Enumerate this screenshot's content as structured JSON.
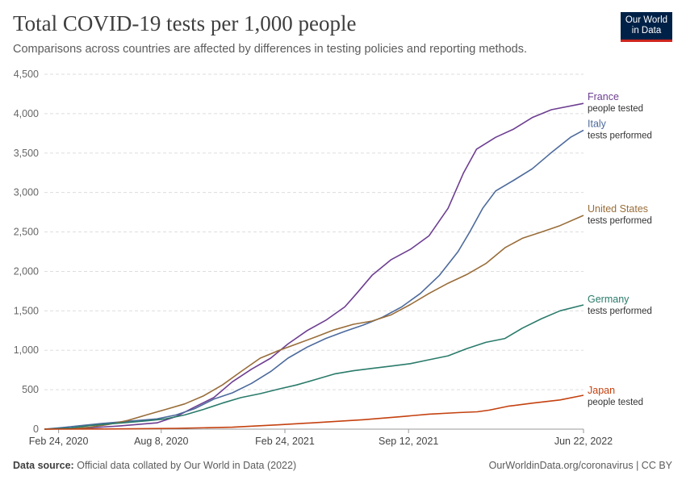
{
  "header": {
    "title": "Total COVID-19 tests per 1,000 people",
    "subtitle": "Comparisons across countries are affected by differences in testing policies and reporting methods."
  },
  "logo": {
    "line1": "Our World",
    "line2": "in Data"
  },
  "footer": {
    "source_label": "Data source:",
    "source_text": "Official data collated by Our World in Data (2022)",
    "right_text": "OurWorldinData.org/coronavirus | CC BY"
  },
  "chart_data": {
    "type": "line",
    "title": "Total COVID-19 tests per 1,000 people",
    "subtitle": "Comparisons across countries are affected by differences in testing policies and reporting methods.",
    "x_range": [
      "2020-02-01",
      "2022-06-22"
    ],
    "ylim": [
      0,
      4500
    ],
    "y_ticks": [
      0,
      500,
      1000,
      1500,
      2000,
      2500,
      3000,
      3500,
      4000,
      4500
    ],
    "y_tick_labels": [
      "0",
      "500",
      "1,000",
      "1,500",
      "2,000",
      "2,500",
      "3,000",
      "3,500",
      "4,000",
      "4,500"
    ],
    "x_ticks": [
      "2020-02-24",
      "2020-08-08",
      "2021-02-24",
      "2021-09-12",
      "2022-06-22"
    ],
    "x_tick_labels": [
      "Feb 24, 2020",
      "Aug 8, 2020",
      "Feb 24, 2021",
      "Sep 12, 2021",
      "Jun 22, 2022"
    ],
    "grid": "horizontal-dashed",
    "legend": "end-of-line labels",
    "series": [
      {
        "name": "France",
        "note": "people tested",
        "color": "#6d3e91",
        "points": [
          [
            "2020-02-01",
            0
          ],
          [
            "2020-04-01",
            10
          ],
          [
            "2020-06-01",
            40
          ],
          [
            "2020-08-01",
            80
          ],
          [
            "2020-09-01",
            160
          ],
          [
            "2020-10-01",
            280
          ],
          [
            "2020-11-01",
            400
          ],
          [
            "2020-12-01",
            600
          ],
          [
            "2021-01-01",
            760
          ],
          [
            "2021-02-01",
            900
          ],
          [
            "2021-03-01",
            1080
          ],
          [
            "2021-04-01",
            1250
          ],
          [
            "2021-05-01",
            1380
          ],
          [
            "2021-06-01",
            1550
          ],
          [
            "2021-06-20",
            1720
          ],
          [
            "2021-07-15",
            1950
          ],
          [
            "2021-08-15",
            2150
          ],
          [
            "2021-09-15",
            2280
          ],
          [
            "2021-10-15",
            2450
          ],
          [
            "2021-11-15",
            2800
          ],
          [
            "2021-12-10",
            3250
          ],
          [
            "2021-12-31",
            3550
          ],
          [
            "2022-01-31",
            3700
          ],
          [
            "2022-02-28",
            3800
          ],
          [
            "2022-03-31",
            3950
          ],
          [
            "2022-05-01",
            4050
          ],
          [
            "2022-06-22",
            4130
          ]
        ]
      },
      {
        "name": "Italy",
        "note": "tests performed",
        "color": "#4c6a9c",
        "points": [
          [
            "2020-02-01",
            0
          ],
          [
            "2020-03-01",
            20
          ],
          [
            "2020-04-01",
            45
          ],
          [
            "2020-05-01",
            70
          ],
          [
            "2020-06-01",
            90
          ],
          [
            "2020-08-01",
            130
          ],
          [
            "2020-09-01",
            180
          ],
          [
            "2020-10-01",
            260
          ],
          [
            "2020-11-01",
            380
          ],
          [
            "2020-12-01",
            460
          ],
          [
            "2021-01-01",
            580
          ],
          [
            "2021-02-01",
            730
          ],
          [
            "2021-03-01",
            900
          ],
          [
            "2021-04-01",
            1040
          ],
          [
            "2021-05-01",
            1150
          ],
          [
            "2021-06-01",
            1240
          ],
          [
            "2021-07-01",
            1320
          ],
          [
            "2021-08-01",
            1420
          ],
          [
            "2021-09-01",
            1550
          ],
          [
            "2021-10-01",
            1720
          ],
          [
            "2021-11-01",
            1950
          ],
          [
            "2021-12-01",
            2250
          ],
          [
            "2021-12-20",
            2500
          ],
          [
            "2022-01-10",
            2800
          ],
          [
            "2022-01-31",
            3020
          ],
          [
            "2022-02-28",
            3150
          ],
          [
            "2022-03-31",
            3300
          ],
          [
            "2022-04-30",
            3500
          ],
          [
            "2022-06-01",
            3700
          ],
          [
            "2022-06-22",
            3790
          ]
        ]
      },
      {
        "name": "United States",
        "note": "tests performed",
        "color": "#996d39",
        "points": [
          [
            "2020-02-01",
            0
          ],
          [
            "2020-03-15",
            5
          ],
          [
            "2020-04-15",
            25
          ],
          [
            "2020-05-15",
            60
          ],
          [
            "2020-06-15",
            110
          ],
          [
            "2020-07-15",
            180
          ],
          [
            "2020-08-15",
            250
          ],
          [
            "2020-09-15",
            320
          ],
          [
            "2020-10-15",
            420
          ],
          [
            "2020-11-15",
            560
          ],
          [
            "2020-12-15",
            730
          ],
          [
            "2021-01-15",
            900
          ],
          [
            "2021-02-15",
            1000
          ],
          [
            "2021-03-15",
            1080
          ],
          [
            "2021-04-15",
            1170
          ],
          [
            "2021-05-15",
            1260
          ],
          [
            "2021-06-15",
            1330
          ],
          [
            "2021-07-15",
            1370
          ],
          [
            "2021-08-15",
            1450
          ],
          [
            "2021-09-15",
            1580
          ],
          [
            "2021-10-15",
            1720
          ],
          [
            "2021-11-15",
            1850
          ],
          [
            "2021-12-15",
            1960
          ],
          [
            "2022-01-15",
            2100
          ],
          [
            "2022-02-15",
            2300
          ],
          [
            "2022-03-15",
            2420
          ],
          [
            "2022-04-15",
            2500
          ],
          [
            "2022-05-15",
            2580
          ],
          [
            "2022-06-22",
            2710
          ]
        ]
      },
      {
        "name": "Germany",
        "note": "tests performed",
        "color": "#2a7b6b",
        "points": [
          [
            "2020-02-01",
            0
          ],
          [
            "2020-03-15",
            15
          ],
          [
            "2020-04-15",
            45
          ],
          [
            "2020-05-15",
            65
          ],
          [
            "2020-06-15",
            85
          ],
          [
            "2020-07-15",
            105
          ],
          [
            "2020-08-15",
            130
          ],
          [
            "2020-09-15",
            180
          ],
          [
            "2020-10-15",
            250
          ],
          [
            "2020-11-15",
            330
          ],
          [
            "2020-12-15",
            400
          ],
          [
            "2021-01-15",
            450
          ],
          [
            "2021-02-15",
            510
          ],
          [
            "2021-03-15",
            560
          ],
          [
            "2021-04-15",
            630
          ],
          [
            "2021-05-15",
            700
          ],
          [
            "2021-06-15",
            740
          ],
          [
            "2021-07-15",
            770
          ],
          [
            "2021-08-15",
            800
          ],
          [
            "2021-09-15",
            830
          ],
          [
            "2021-10-15",
            880
          ],
          [
            "2021-11-15",
            930
          ],
          [
            "2021-12-15",
            1020
          ],
          [
            "2022-01-15",
            1100
          ],
          [
            "2022-02-15",
            1150
          ],
          [
            "2022-03-15",
            1280
          ],
          [
            "2022-04-15",
            1400
          ],
          [
            "2022-05-15",
            1500
          ],
          [
            "2022-06-22",
            1575
          ]
        ]
      },
      {
        "name": "Japan",
        "note": "people tested",
        "color": "#c4410f",
        "points": [
          [
            "2020-02-01",
            0
          ],
          [
            "2020-06-01",
            3
          ],
          [
            "2020-09-01",
            10
          ],
          [
            "2020-12-01",
            25
          ],
          [
            "2021-02-15",
            55
          ],
          [
            "2021-05-01",
            90
          ],
          [
            "2021-07-01",
            120
          ],
          [
            "2021-09-01",
            160
          ],
          [
            "2021-10-15",
            190
          ],
          [
            "2021-12-01",
            210
          ],
          [
            "2022-01-01",
            220
          ],
          [
            "2022-01-20",
            240
          ],
          [
            "2022-02-20",
            290
          ],
          [
            "2022-04-01",
            330
          ],
          [
            "2022-05-15",
            370
          ],
          [
            "2022-06-22",
            430
          ]
        ]
      }
    ]
  }
}
